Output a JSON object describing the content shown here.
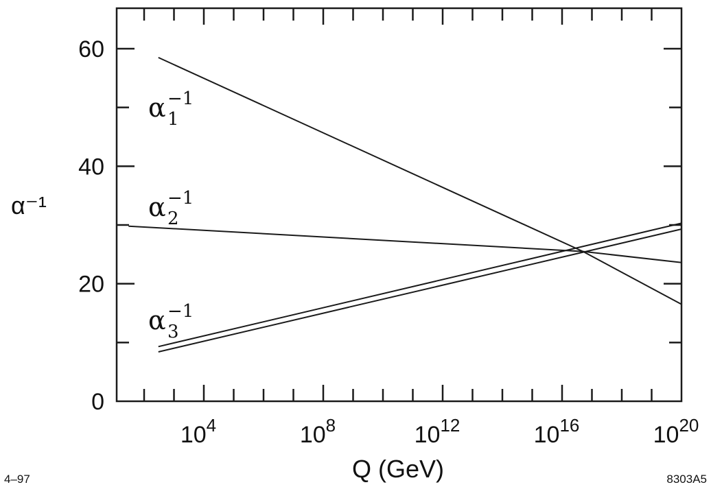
{
  "chart_data": {
    "type": "line",
    "xlabel": "Q (GeV)",
    "ylabel": "α⁻¹",
    "x_scale": "log10",
    "xlim": [
      100.0,
      1e+20
    ],
    "ylim": [
      0,
      65
    ],
    "x_tick_labels": [
      {
        "base": "10",
        "exp": "4",
        "value": 10000.0
      },
      {
        "base": "10",
        "exp": "8",
        "value": 100000000.0
      },
      {
        "base": "10",
        "exp": "12",
        "value": 1000000000000.0
      },
      {
        "base": "10",
        "exp": "16",
        "value": 1e+16
      },
      {
        "base": "10",
        "exp": "20",
        "value": 1e+20
      }
    ],
    "y_ticks": [
      0,
      20,
      40,
      60
    ],
    "grid": false,
    "series": [
      {
        "name": "α₁⁻¹",
        "color": "#1a1a1a",
        "x": [
          300.0,
          5e+16,
          1e+20
        ],
        "y": [
          58.5,
          25.5,
          16.5
        ]
      },
      {
        "name": "α₂⁻¹",
        "color": "#1a1a1a",
        "x": [
          30.0,
          5e+16,
          1e+20
        ],
        "y": [
          29.8,
          25.5,
          23.6
        ]
      },
      {
        "name": "α₃⁻¹",
        "color": "#1a1a1a",
        "x": [
          300.0,
          1e+20
        ],
        "y": [
          9.3,
          30.3
        ]
      },
      {
        "name": "α₃⁻¹",
        "color": "#1a1a1a",
        "x": [
          300.0,
          1e+20
        ],
        "y": [
          8.4,
          29.3
        ]
      }
    ],
    "series_labels": [
      {
        "symbol": "α",
        "sub": "1",
        "sup": "−1"
      },
      {
        "symbol": "α",
        "sub": "2",
        "sup": "−1"
      },
      {
        "symbol": "α",
        "sub": "3",
        "sup": "−1"
      }
    ]
  },
  "footer": {
    "left": "4–97",
    "right": "8303A5"
  }
}
